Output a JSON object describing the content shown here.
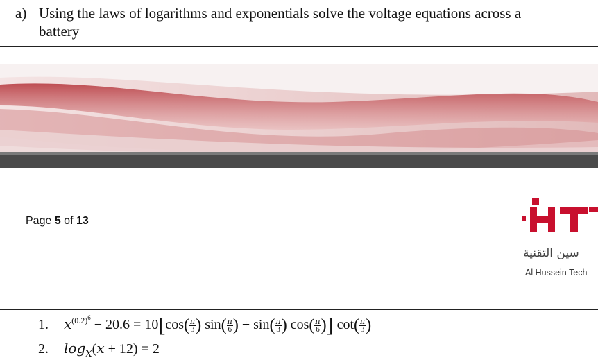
{
  "question": {
    "label": "a)",
    "line1": "Using the laws of logarithms and exponentials solve the voltage equations across a",
    "line2": "battery"
  },
  "footer": {
    "page_prefix": "Page ",
    "page_current": "5",
    "page_of": " of ",
    "page_total": "13"
  },
  "logo": {
    "arabic": "سين التقنية",
    "english": "Al Hussein Tech"
  },
  "equations": [
    {
      "number": "1.",
      "text": "x^(0.2)^6 − 20.6 = 10[cos(π/3) sin(π/6) + sin(π/3) cos(π/6)] cot(π/3)"
    },
    {
      "number": "2.",
      "text": "log_x(x + 12) = 2"
    }
  ],
  "colors": {
    "banner_red": "#b22a2a",
    "banner_grey": "#4a4a4a",
    "logo_red": "#c8102e"
  }
}
